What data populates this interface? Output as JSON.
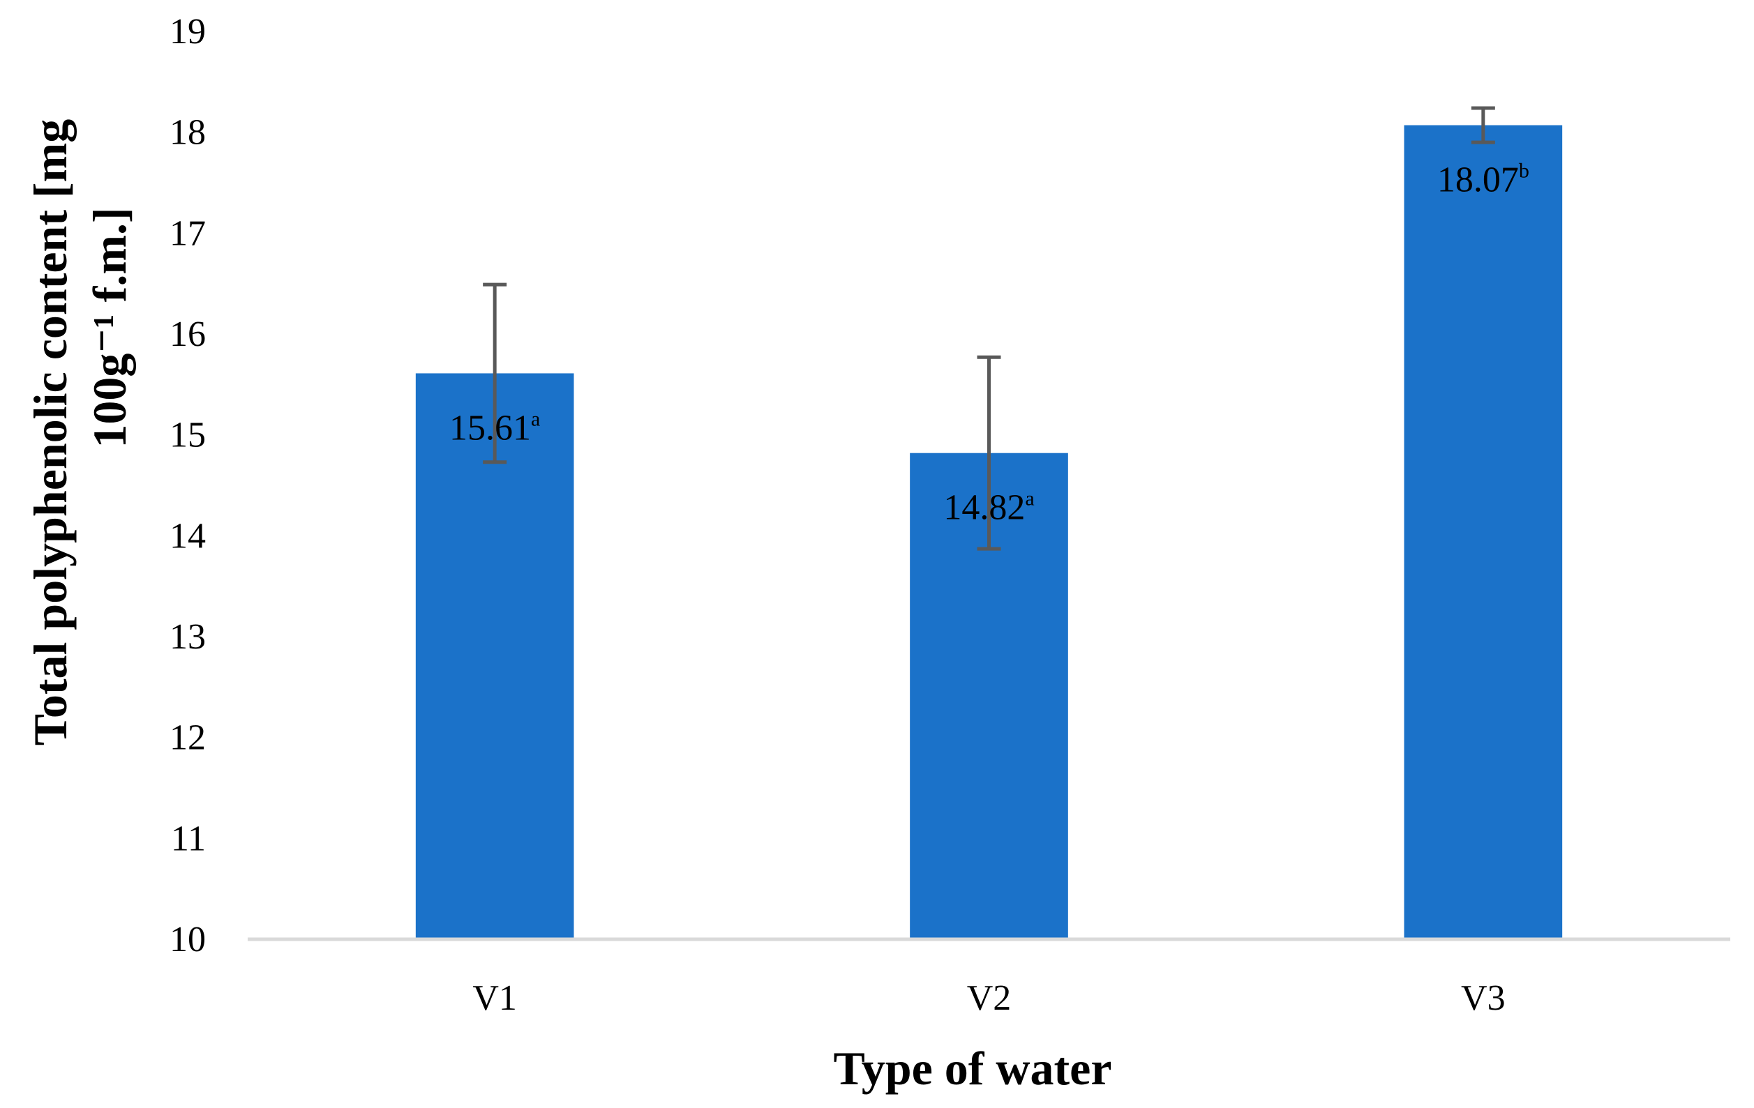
{
  "chart_data": {
    "type": "bar",
    "title": "",
    "xlabel": "Type of water",
    "ylabel_lines": [
      "Total polyphenolic content [mg",
      "100g⁻¹ f.m.]"
    ],
    "categories": [
      "V1",
      "V2",
      "V3"
    ],
    "values": [
      15.61,
      14.82,
      18.07
    ],
    "errors": [
      0.88,
      0.95,
      0.17
    ],
    "labels": [
      "15.61",
      "14.82",
      "18.07"
    ],
    "label_superscripts": [
      "a",
      "a",
      "b"
    ],
    "ylim": [
      10,
      19
    ],
    "yticks": [
      10,
      11,
      12,
      13,
      14,
      15,
      16,
      17,
      18,
      19
    ],
    "grid": false,
    "legend": "none",
    "colors": {
      "bar": "#1b72c9",
      "error_bar": "#595959",
      "axis": "#d9d9d9"
    }
  }
}
